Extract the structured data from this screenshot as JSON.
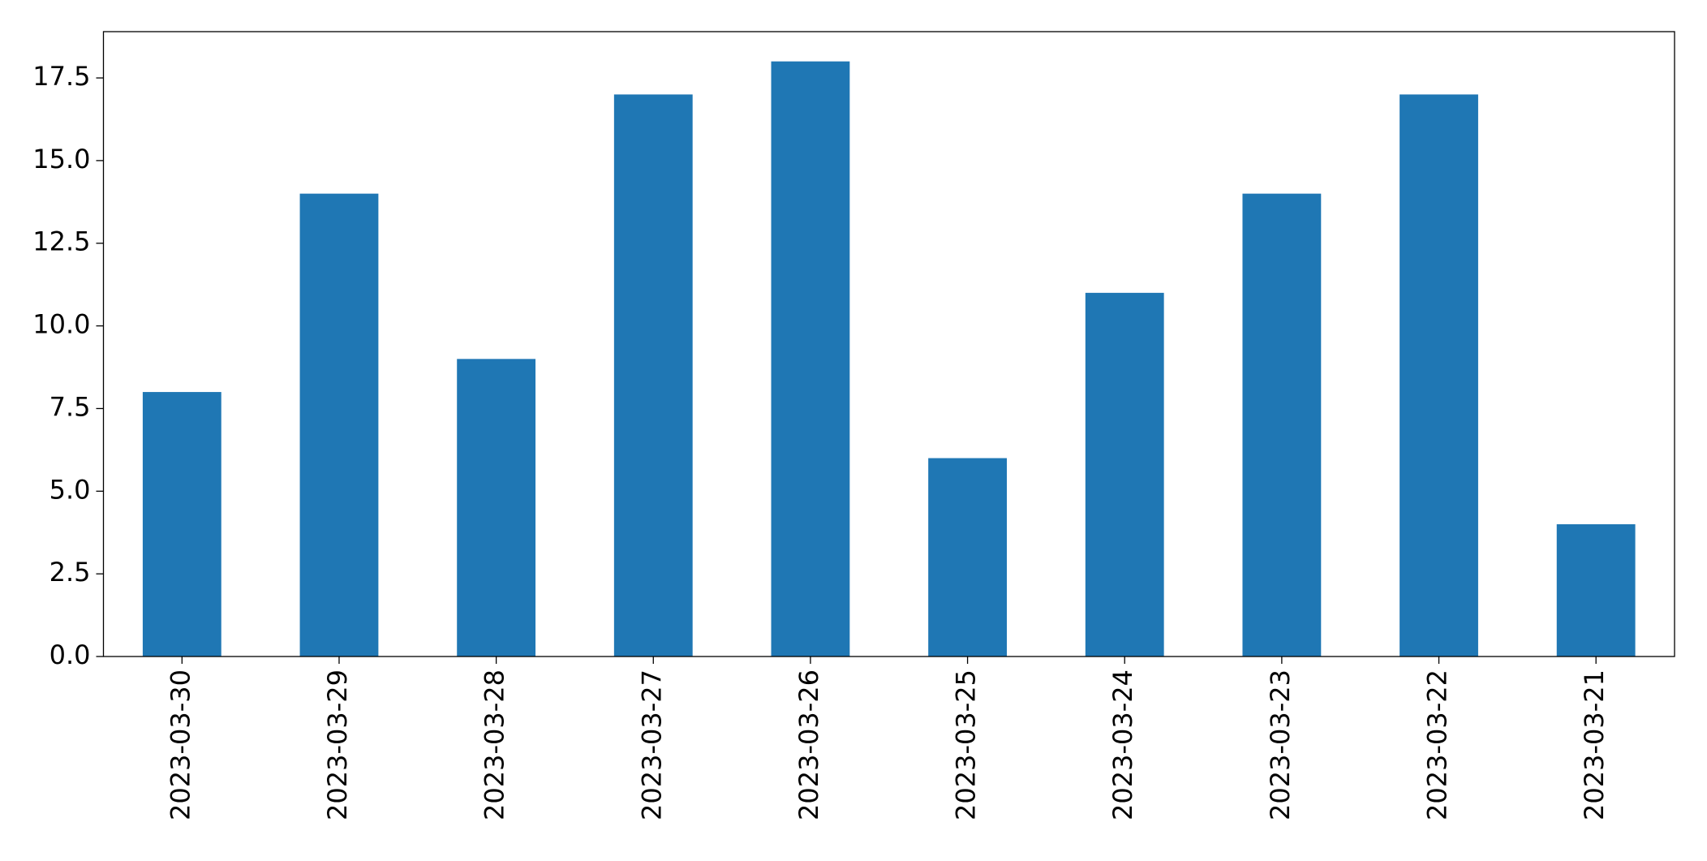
{
  "chart_data": {
    "type": "bar",
    "categories": [
      "2023-03-30",
      "2023-03-29",
      "2023-03-28",
      "2023-03-27",
      "2023-03-26",
      "2023-03-25",
      "2023-03-24",
      "2023-03-23",
      "2023-03-22",
      "2023-03-21"
    ],
    "values": [
      8,
      14,
      9,
      17,
      18,
      6,
      11,
      14,
      17,
      4
    ],
    "color": "#1f77b4",
    "ylim": [
      0,
      18.9
    ],
    "yticks": [
      {
        "value": 0,
        "label": "0.0"
      },
      2.5,
      {
        "value": 5,
        "label": "5.0"
      },
      7.5,
      {
        "value": 10,
        "label": "10.0"
      },
      12.5,
      {
        "value": 15,
        "label": "15.0"
      },
      17.5
    ],
    "grid": false
  }
}
